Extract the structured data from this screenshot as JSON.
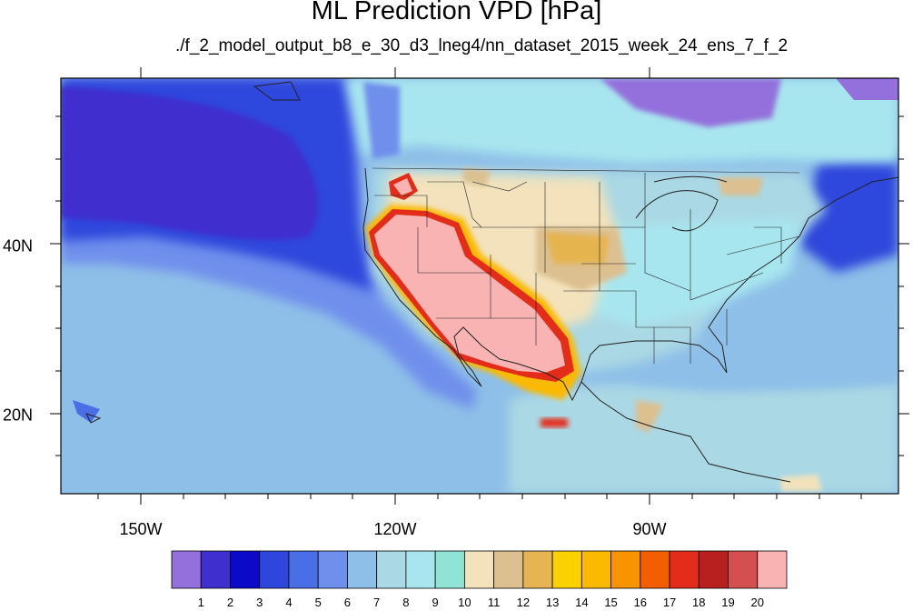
{
  "title": "ML Prediction VPD [hPa]",
  "subtitle": "./f_2_model_output_b8_e_30_d3_lneg4/nn_dataset_2015_week_24_ens_7_f_2",
  "axes": {
    "x_tick_labels": [
      "150W",
      "120W",
      "90W"
    ],
    "y_tick_labels": [
      "40N",
      "20N"
    ]
  },
  "colorbar": {
    "labels": [
      "1",
      "2",
      "3",
      "4",
      "5",
      "6",
      "7",
      "8",
      "9",
      "10",
      "11",
      "12",
      "13",
      "14",
      "15",
      "16",
      "17",
      "18",
      "19",
      "20"
    ],
    "colors": [
      "#9370db",
      "#3f2fcf",
      "#0a0ac8",
      "#2e46dc",
      "#4a6ee6",
      "#6f8fec",
      "#8ebfe8",
      "#aad8e4",
      "#a8e6ef",
      "#90e4d6",
      "#f3e2bc",
      "#dcc090",
      "#e6b450",
      "#fad200",
      "#fbba00",
      "#f79400",
      "#f35f00",
      "#e32d1a",
      "#b8201f",
      "#d45050",
      "#f9b3b3"
    ]
  }
}
